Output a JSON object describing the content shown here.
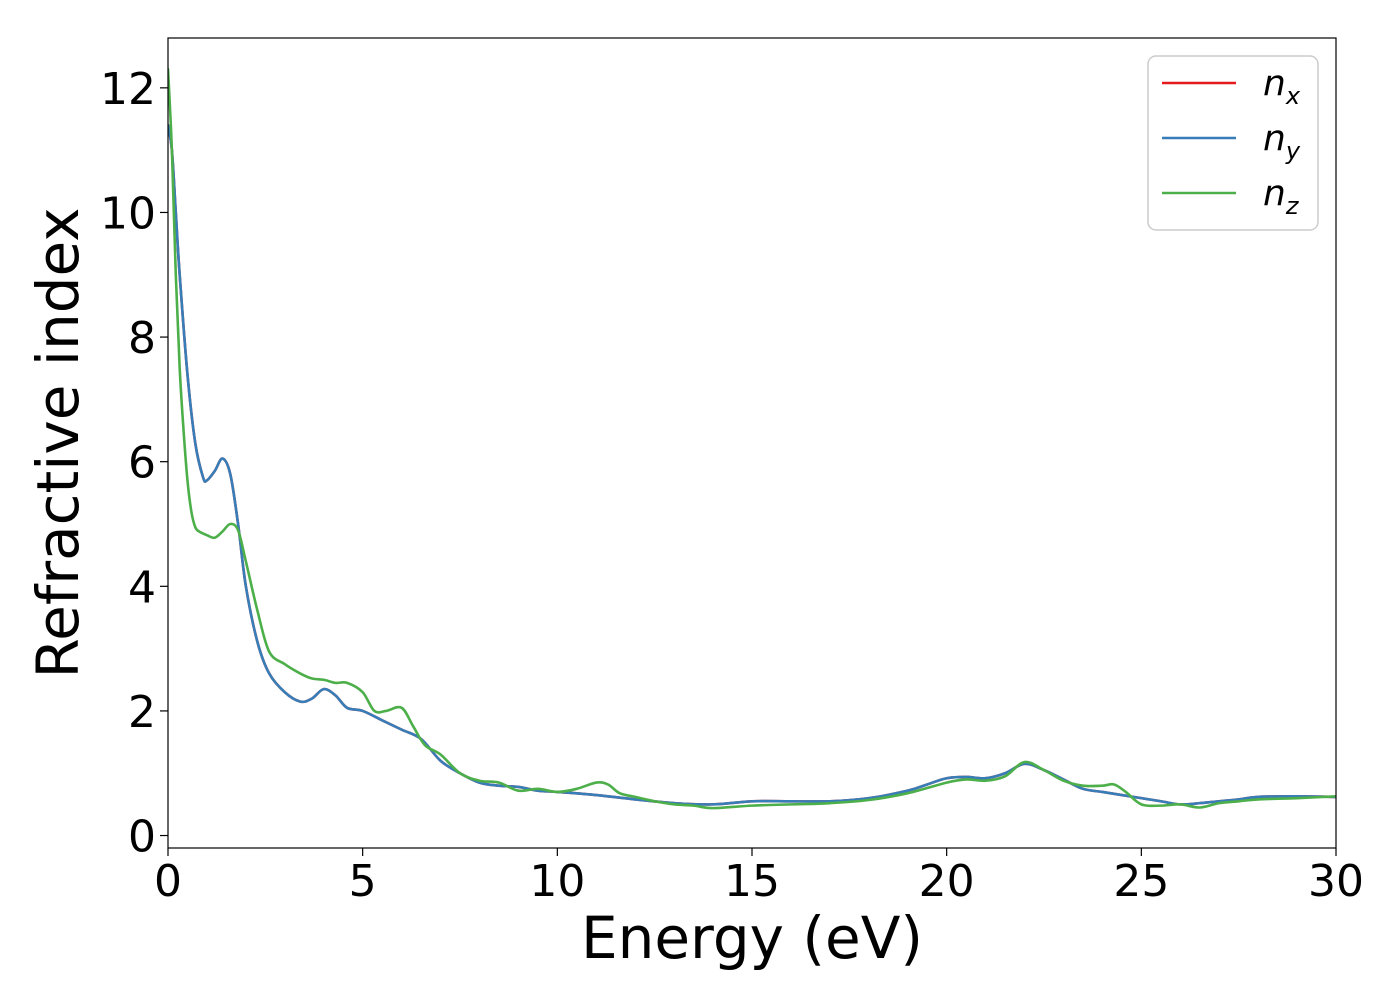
{
  "chart_data": {
    "type": "line",
    "title": "",
    "xlabel": "Energy (eV)",
    "ylabel": "Refractive index",
    "xlim": [
      0,
      30
    ],
    "ylim": [
      -0.2,
      12.8
    ],
    "xticks": [
      0,
      5,
      10,
      15,
      20,
      25,
      30
    ],
    "yticks": [
      0,
      2,
      4,
      6,
      8,
      10,
      12
    ],
    "xtick_labels": [
      "0",
      "5",
      "10",
      "15",
      "20",
      "25",
      "30"
    ],
    "ytick_labels": [
      "0",
      "2",
      "4",
      "6",
      "8",
      "10",
      "12"
    ],
    "grid": false,
    "legend_position": "top-right",
    "series": [
      {
        "name": "n",
        "subscript": "x",
        "color": "#e41a1c",
        "x": [
          0.0,
          0.1,
          0.2,
          0.3,
          0.5,
          0.7,
          0.9,
          1.0,
          1.2,
          1.4,
          1.6,
          1.8,
          2.0,
          2.3,
          2.6,
          3.0,
          3.4,
          3.7,
          4.0,
          4.3,
          4.6,
          5.0,
          5.5,
          6.0,
          6.5,
          7.0,
          7.5,
          8.0,
          8.5,
          9.0,
          9.5,
          10.0,
          11.0,
          12.0,
          13.0,
          14.0,
          15.0,
          16.0,
          17.0,
          18.0,
          19.0,
          19.5,
          20.0,
          20.5,
          21.0,
          21.5,
          22.0,
          22.5,
          23.0,
          23.5,
          24.0,
          24.5,
          25.0,
          25.5,
          26.0,
          26.5,
          27.0,
          27.5,
          28.0,
          29.0,
          30.0
        ],
        "values": [
          11.4,
          11.0,
          10.0,
          9.0,
          7.4,
          6.3,
          5.75,
          5.7,
          5.85,
          6.05,
          5.8,
          5.0,
          4.0,
          3.1,
          2.6,
          2.3,
          2.15,
          2.2,
          2.35,
          2.25,
          2.05,
          2.0,
          1.85,
          1.7,
          1.55,
          1.2,
          1.0,
          0.85,
          0.8,
          0.78,
          0.72,
          0.7,
          0.65,
          0.58,
          0.52,
          0.5,
          0.55,
          0.55,
          0.55,
          0.6,
          0.72,
          0.82,
          0.92,
          0.94,
          0.92,
          1.0,
          1.15,
          1.05,
          0.9,
          0.75,
          0.7,
          0.65,
          0.6,
          0.55,
          0.5,
          0.52,
          0.55,
          0.58,
          0.62,
          0.63,
          0.62
        ]
      },
      {
        "name": "n",
        "subscript": "y",
        "color": "#377eb8",
        "x": [
          0.0,
          0.1,
          0.2,
          0.3,
          0.5,
          0.7,
          0.9,
          1.0,
          1.2,
          1.4,
          1.6,
          1.8,
          2.0,
          2.3,
          2.6,
          3.0,
          3.4,
          3.7,
          4.0,
          4.3,
          4.6,
          5.0,
          5.5,
          6.0,
          6.5,
          7.0,
          7.5,
          8.0,
          8.5,
          9.0,
          9.5,
          10.0,
          11.0,
          12.0,
          13.0,
          14.0,
          15.0,
          16.0,
          17.0,
          18.0,
          19.0,
          19.5,
          20.0,
          20.5,
          21.0,
          21.5,
          22.0,
          22.5,
          23.0,
          23.5,
          24.0,
          24.5,
          25.0,
          25.5,
          26.0,
          26.5,
          27.0,
          27.5,
          28.0,
          29.0,
          30.0
        ],
        "values": [
          11.4,
          11.0,
          10.0,
          9.0,
          7.4,
          6.3,
          5.75,
          5.7,
          5.85,
          6.05,
          5.8,
          5.0,
          4.0,
          3.1,
          2.6,
          2.3,
          2.15,
          2.2,
          2.35,
          2.25,
          2.05,
          2.0,
          1.85,
          1.7,
          1.55,
          1.2,
          1.0,
          0.85,
          0.8,
          0.78,
          0.72,
          0.7,
          0.65,
          0.58,
          0.52,
          0.5,
          0.55,
          0.55,
          0.55,
          0.6,
          0.72,
          0.82,
          0.92,
          0.94,
          0.92,
          1.0,
          1.15,
          1.05,
          0.9,
          0.75,
          0.7,
          0.65,
          0.6,
          0.55,
          0.5,
          0.52,
          0.55,
          0.58,
          0.62,
          0.63,
          0.62
        ]
      },
      {
        "name": "n",
        "subscript": "z",
        "color": "#4daf4a",
        "x": [
          0.0,
          0.1,
          0.2,
          0.3,
          0.4,
          0.5,
          0.6,
          0.7,
          0.8,
          1.0,
          1.2,
          1.4,
          1.6,
          1.8,
          2.0,
          2.3,
          2.6,
          3.0,
          3.4,
          3.7,
          4.0,
          4.3,
          4.6,
          5.0,
          5.3,
          5.6,
          6.0,
          6.3,
          6.6,
          7.0,
          7.5,
          8.0,
          8.5,
          9.0,
          9.5,
          10.0,
          10.5,
          11.0,
          11.3,
          11.6,
          12.0,
          12.5,
          13.0,
          13.5,
          14.0,
          15.0,
          16.0,
          17.0,
          18.0,
          19.0,
          20.0,
          20.5,
          21.0,
          21.5,
          22.0,
          22.5,
          23.0,
          23.5,
          24.0,
          24.3,
          24.6,
          25.0,
          25.5,
          26.0,
          26.5,
          27.0,
          27.5,
          28.0,
          29.0,
          30.0
        ],
        "values": [
          12.3,
          11.0,
          9.0,
          7.5,
          6.5,
          5.7,
          5.2,
          4.95,
          4.88,
          4.82,
          4.78,
          4.88,
          5.0,
          4.9,
          4.4,
          3.6,
          2.95,
          2.75,
          2.6,
          2.52,
          2.5,
          2.45,
          2.45,
          2.3,
          2.0,
          2.0,
          2.05,
          1.75,
          1.45,
          1.3,
          1.0,
          0.88,
          0.85,
          0.72,
          0.75,
          0.7,
          0.75,
          0.85,
          0.82,
          0.68,
          0.62,
          0.55,
          0.5,
          0.48,
          0.44,
          0.48,
          0.5,
          0.52,
          0.57,
          0.68,
          0.85,
          0.9,
          0.88,
          0.95,
          1.18,
          1.05,
          0.88,
          0.8,
          0.8,
          0.82,
          0.7,
          0.5,
          0.48,
          0.5,
          0.45,
          0.52,
          0.55,
          0.58,
          0.6,
          0.63
        ]
      }
    ]
  }
}
